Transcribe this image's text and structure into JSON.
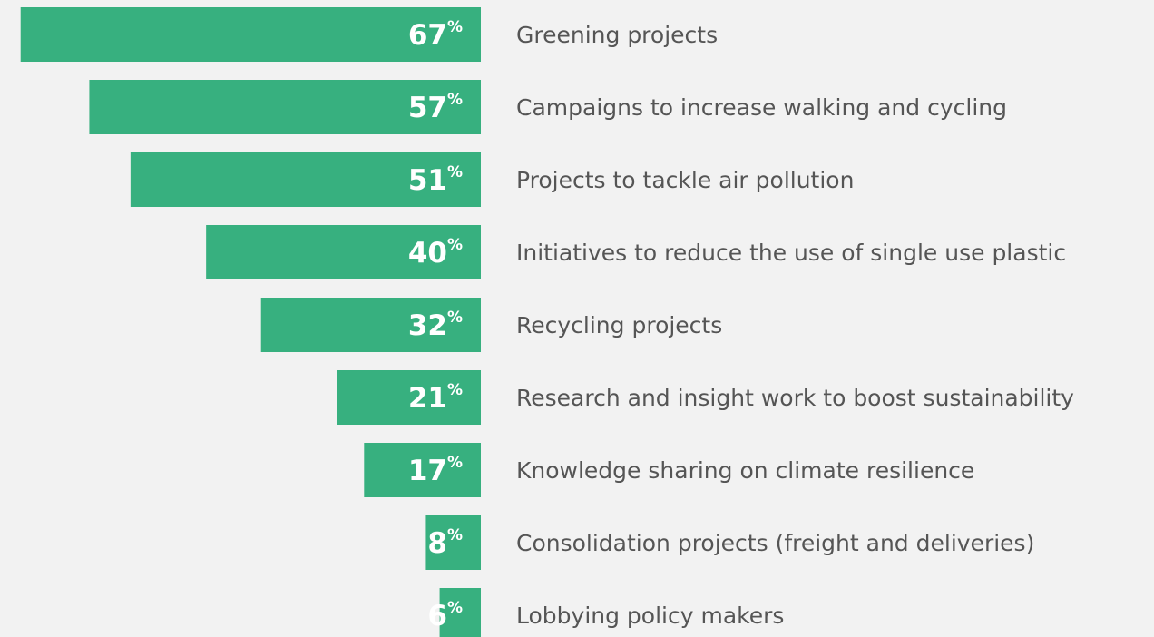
{
  "chart_data": {
    "type": "bar",
    "orientation": "horizontal",
    "direction": "leftward",
    "categories": [
      "Greening projects",
      "Campaigns to increase walking and cycling",
      "Projects to tackle air pollution",
      "Initiatives to reduce the use of single use plastic",
      "Recycling projects",
      "Research and insight work to boost sustainability",
      "Knowledge sharing on climate resilience",
      "Consolidation projects (freight and deliveries)",
      "Lobbying policy makers"
    ],
    "values": [
      67,
      57,
      51,
      40,
      32,
      21,
      17,
      8,
      6
    ],
    "value_labels": [
      "67%",
      "57%",
      "51%",
      "40%",
      "32%",
      "21%",
      "17%",
      "8%",
      "6%"
    ],
    "color": "#37b07f",
    "xlim": [
      0,
      70
    ]
  }
}
